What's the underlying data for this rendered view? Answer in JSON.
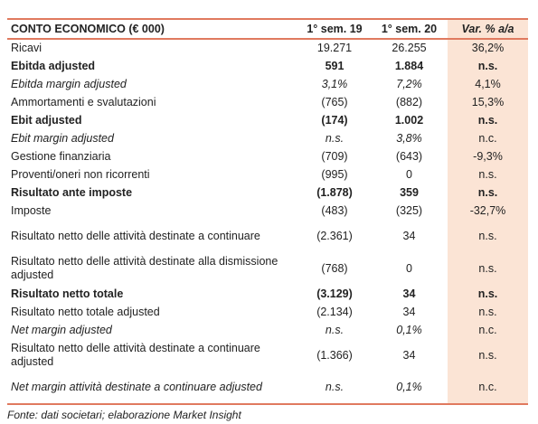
{
  "table": {
    "header": [
      "CONTO ECONOMICO (€ 000)",
      "1° sem. 19",
      "1° sem. 20",
      "Var. % a/a"
    ],
    "rows": [
      [
        "Ricavi",
        "19.271",
        "26.255",
        "36,2%"
      ],
      [
        "Ebitda adjusted",
        "591",
        "1.884",
        "n.s."
      ],
      [
        "Ebitda margin adjusted",
        "3,1%",
        "7,2%",
        "4,1%"
      ],
      [
        "Ammortamenti e svalutazioni",
        "(765)",
        "(882)",
        "15,3%"
      ],
      [
        "Ebit adjusted",
        "(174)",
        "1.002",
        "n.s."
      ],
      [
        "Ebit margin adjusted",
        "n.s.",
        "3,8%",
        "n.c."
      ],
      [
        "Gestione finanziaria",
        "(709)",
        "(643)",
        "-9,3%"
      ],
      [
        "Proventi/oneri non ricorrenti",
        "(995)",
        "0",
        "n.s."
      ],
      [
        "Risultato ante imposte",
        "(1.878)",
        "359",
        "n.s."
      ],
      [
        "Imposte",
        "(483)",
        "(325)",
        "-32,7%"
      ],
      [
        "Risultato netto delle attività destinate a continuare",
        "(2.361)",
        "34",
        "n.s."
      ],
      [
        "Risultato netto delle attività destinate alla dismissione adjusted",
        "(768)",
        "0",
        "n.s."
      ],
      [
        "Risultato netto totale",
        "(3.129)",
        "34",
        "n.s."
      ],
      [
        "Risultato netto totale adjusted",
        "(2.134)",
        "34",
        "n.s."
      ],
      [
        "Net margin adjusted",
        "n.s.",
        "0,1%",
        "n.c."
      ],
      [
        "Risultato netto delle attività destinate a continuare adjusted",
        "(1.366)",
        "34",
        "n.s."
      ],
      [
        "Net margin attività destinate a continuare adjusted",
        "n.s.",
        "0,1%",
        "n.c."
      ]
    ]
  },
  "footer": "Fonte: dati societari; elaborazione Market Insight"
}
